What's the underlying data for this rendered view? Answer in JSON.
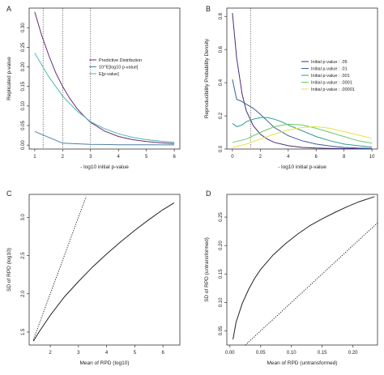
{
  "chart_data": [
    {
      "panel": "A",
      "type": "line",
      "xlabel": "- log10 initial p-value",
      "ylabel": "Replicated p-value",
      "xlim": [
        1,
        6
      ],
      "ylim": [
        0,
        0.35
      ],
      "xticks": [
        "1",
        "2",
        "3",
        "4",
        "5",
        "6"
      ],
      "yticks": [
        "0.00",
        "0.05",
        "0.10",
        "0.15",
        "0.20",
        "0.25",
        "0.30"
      ],
      "vlines": [
        1.3,
        2,
        3
      ],
      "legend_position": "center-right",
      "series": [
        {
          "name": "Predictive Distribution",
          "color": "#6a2c7a",
          "x": [
            1,
            1.25,
            1.5,
            1.75,
            2,
            2.25,
            2.5,
            2.75,
            3,
            3.5,
            4,
            4.5,
            5,
            5.5,
            6
          ],
          "y": [
            0.34,
            0.28,
            0.23,
            0.185,
            0.15,
            0.12,
            0.095,
            0.075,
            0.058,
            0.036,
            0.022,
            0.014,
            0.009,
            0.006,
            0.004
          ]
        },
        {
          "name": "10^E[log10 p-value]",
          "color": "#4a7fa8",
          "x": [
            1,
            2,
            3,
            4,
            5,
            6
          ],
          "y": [
            0.035,
            0.005,
            0.002,
            0.001,
            0.001,
            0.0005
          ]
        },
        {
          "name": "E[p-value]",
          "color": "#4fb8a8",
          "x": [
            1,
            1.5,
            2,
            2.5,
            3,
            3.5,
            4,
            4.5,
            5,
            5.5,
            6
          ],
          "y": [
            0.235,
            0.175,
            0.125,
            0.088,
            0.06,
            0.042,
            0.029,
            0.02,
            0.014,
            0.01,
            0.007
          ]
        }
      ]
    },
    {
      "panel": "B",
      "type": "line",
      "xlabel": "- log10 initial p-value",
      "ylabel": "Reproducibility Probability Density",
      "xlim": [
        0,
        10
      ],
      "ylim": [
        0,
        0.85
      ],
      "xticks": [
        "0",
        "2",
        "4",
        "6",
        "8",
        "10"
      ],
      "yticks": [
        "0.0",
        "0.2",
        "0.4",
        "0.6",
        "0.8"
      ],
      "vlines": [
        1.3
      ],
      "legend_position": "center-right",
      "series": [
        {
          "name": "Initial p-value : .05",
          "color": "#4b2a78",
          "x": [
            0,
            0.3,
            0.7,
            1,
            1.5,
            2,
            2.5,
            3,
            4,
            5,
            6,
            7,
            8,
            9,
            10
          ],
          "y": [
            0.82,
            0.55,
            0.33,
            0.23,
            0.14,
            0.09,
            0.06,
            0.04,
            0.02,
            0.01,
            0.006,
            0.004,
            0.003,
            0.002,
            0.001
          ]
        },
        {
          "name": "Initial p-value : .01",
          "color": "#3a5f9a",
          "x": [
            0,
            0.3,
            0.6,
            1,
            1.5,
            2,
            2.5,
            3,
            4,
            5,
            6,
            7,
            8,
            9,
            10
          ],
          "y": [
            0.42,
            0.3,
            0.29,
            0.27,
            0.245,
            0.21,
            0.17,
            0.13,
            0.08,
            0.05,
            0.03,
            0.018,
            0.01,
            0.006,
            0.004
          ]
        },
        {
          "name": "Initial p-value : .001",
          "color": "#2f9a96",
          "x": [
            0,
            0.3,
            0.7,
            1,
            1.5,
            2,
            2.5,
            3,
            3.5,
            4,
            5,
            6,
            7,
            8,
            9,
            10
          ],
          "y": [
            0.155,
            0.135,
            0.145,
            0.165,
            0.18,
            0.19,
            0.19,
            0.18,
            0.165,
            0.145,
            0.11,
            0.075,
            0.05,
            0.03,
            0.02,
            0.012
          ]
        },
        {
          "name": "Initial p-value : .0001",
          "color": "#6cc86a",
          "x": [
            0,
            1,
            2,
            3,
            4,
            5,
            6,
            7,
            8,
            9,
            10
          ],
          "y": [
            0.04,
            0.06,
            0.1,
            0.135,
            0.15,
            0.145,
            0.125,
            0.1,
            0.075,
            0.05,
            0.035
          ]
        },
        {
          "name": "Initial p-value : .00001",
          "color": "#e9e24a",
          "x": [
            0,
            1,
            2,
            3,
            4,
            5,
            6,
            7,
            8,
            9,
            10
          ],
          "y": [
            0.01,
            0.03,
            0.06,
            0.09,
            0.115,
            0.13,
            0.135,
            0.125,
            0.105,
            0.085,
            0.065
          ]
        }
      ]
    },
    {
      "panel": "C",
      "type": "line",
      "xlabel": "Mean of RPD (log10)",
      "ylabel": "SD of RPD (log10)",
      "xlim": [
        1.25,
        6.6
      ],
      "ylim": [
        1.33,
        3.3
      ],
      "xticks": [
        "2",
        "3",
        "4",
        "5",
        "6"
      ],
      "yticks": [
        "1.5",
        "2.0",
        "2.5",
        "3.0"
      ],
      "series": [
        {
          "name": "",
          "color": "#222222",
          "dash": "solid",
          "x": [
            1.4,
            1.6,
            1.8,
            2,
            2.5,
            3,
            3.5,
            4,
            4.5,
            5,
            5.5,
            6,
            6.4
          ],
          "y": [
            1.38,
            1.5,
            1.61,
            1.72,
            1.96,
            2.16,
            2.35,
            2.52,
            2.68,
            2.83,
            2.97,
            3.1,
            3.19
          ]
        },
        {
          "name": "",
          "color": "#222222",
          "dash": "dotted",
          "x": [
            1.4,
            3.27
          ],
          "y": [
            1.4,
            3.27
          ]
        }
      ]
    },
    {
      "panel": "D",
      "type": "line",
      "xlabel": "Mean of RPD (untransformed)",
      "ylabel": "SD of RPD (untransformed)",
      "xlim": [
        -0.005,
        0.24
      ],
      "ylim": [
        0.025,
        0.29
      ],
      "xticks": [
        "0.00",
        "0.05",
        "0.10",
        "0.15",
        "0.20"
      ],
      "yticks": [
        "0.05",
        "0.10",
        "0.15",
        "0.20",
        "0.25"
      ],
      "series": [
        {
          "name": "",
          "color": "#222222",
          "dash": "solid",
          "x": [
            0.005,
            0.01,
            0.02,
            0.03,
            0.04,
            0.05,
            0.07,
            0.09,
            0.11,
            0.13,
            0.15,
            0.17,
            0.19,
            0.21,
            0.235
          ],
          "y": [
            0.035,
            0.065,
            0.098,
            0.122,
            0.142,
            0.158,
            0.183,
            0.203,
            0.22,
            0.235,
            0.247,
            0.258,
            0.268,
            0.277,
            0.286
          ]
        },
        {
          "name": "",
          "color": "#222222",
          "dash": "dotted",
          "x": [
            0.025,
            0.24
          ],
          "y": [
            0.025,
            0.24
          ]
        }
      ]
    }
  ],
  "panels": {
    "A": {
      "letter": "A"
    },
    "B": {
      "letter": "B"
    },
    "C": {
      "letter": "C"
    },
    "D": {
      "letter": "D"
    }
  }
}
